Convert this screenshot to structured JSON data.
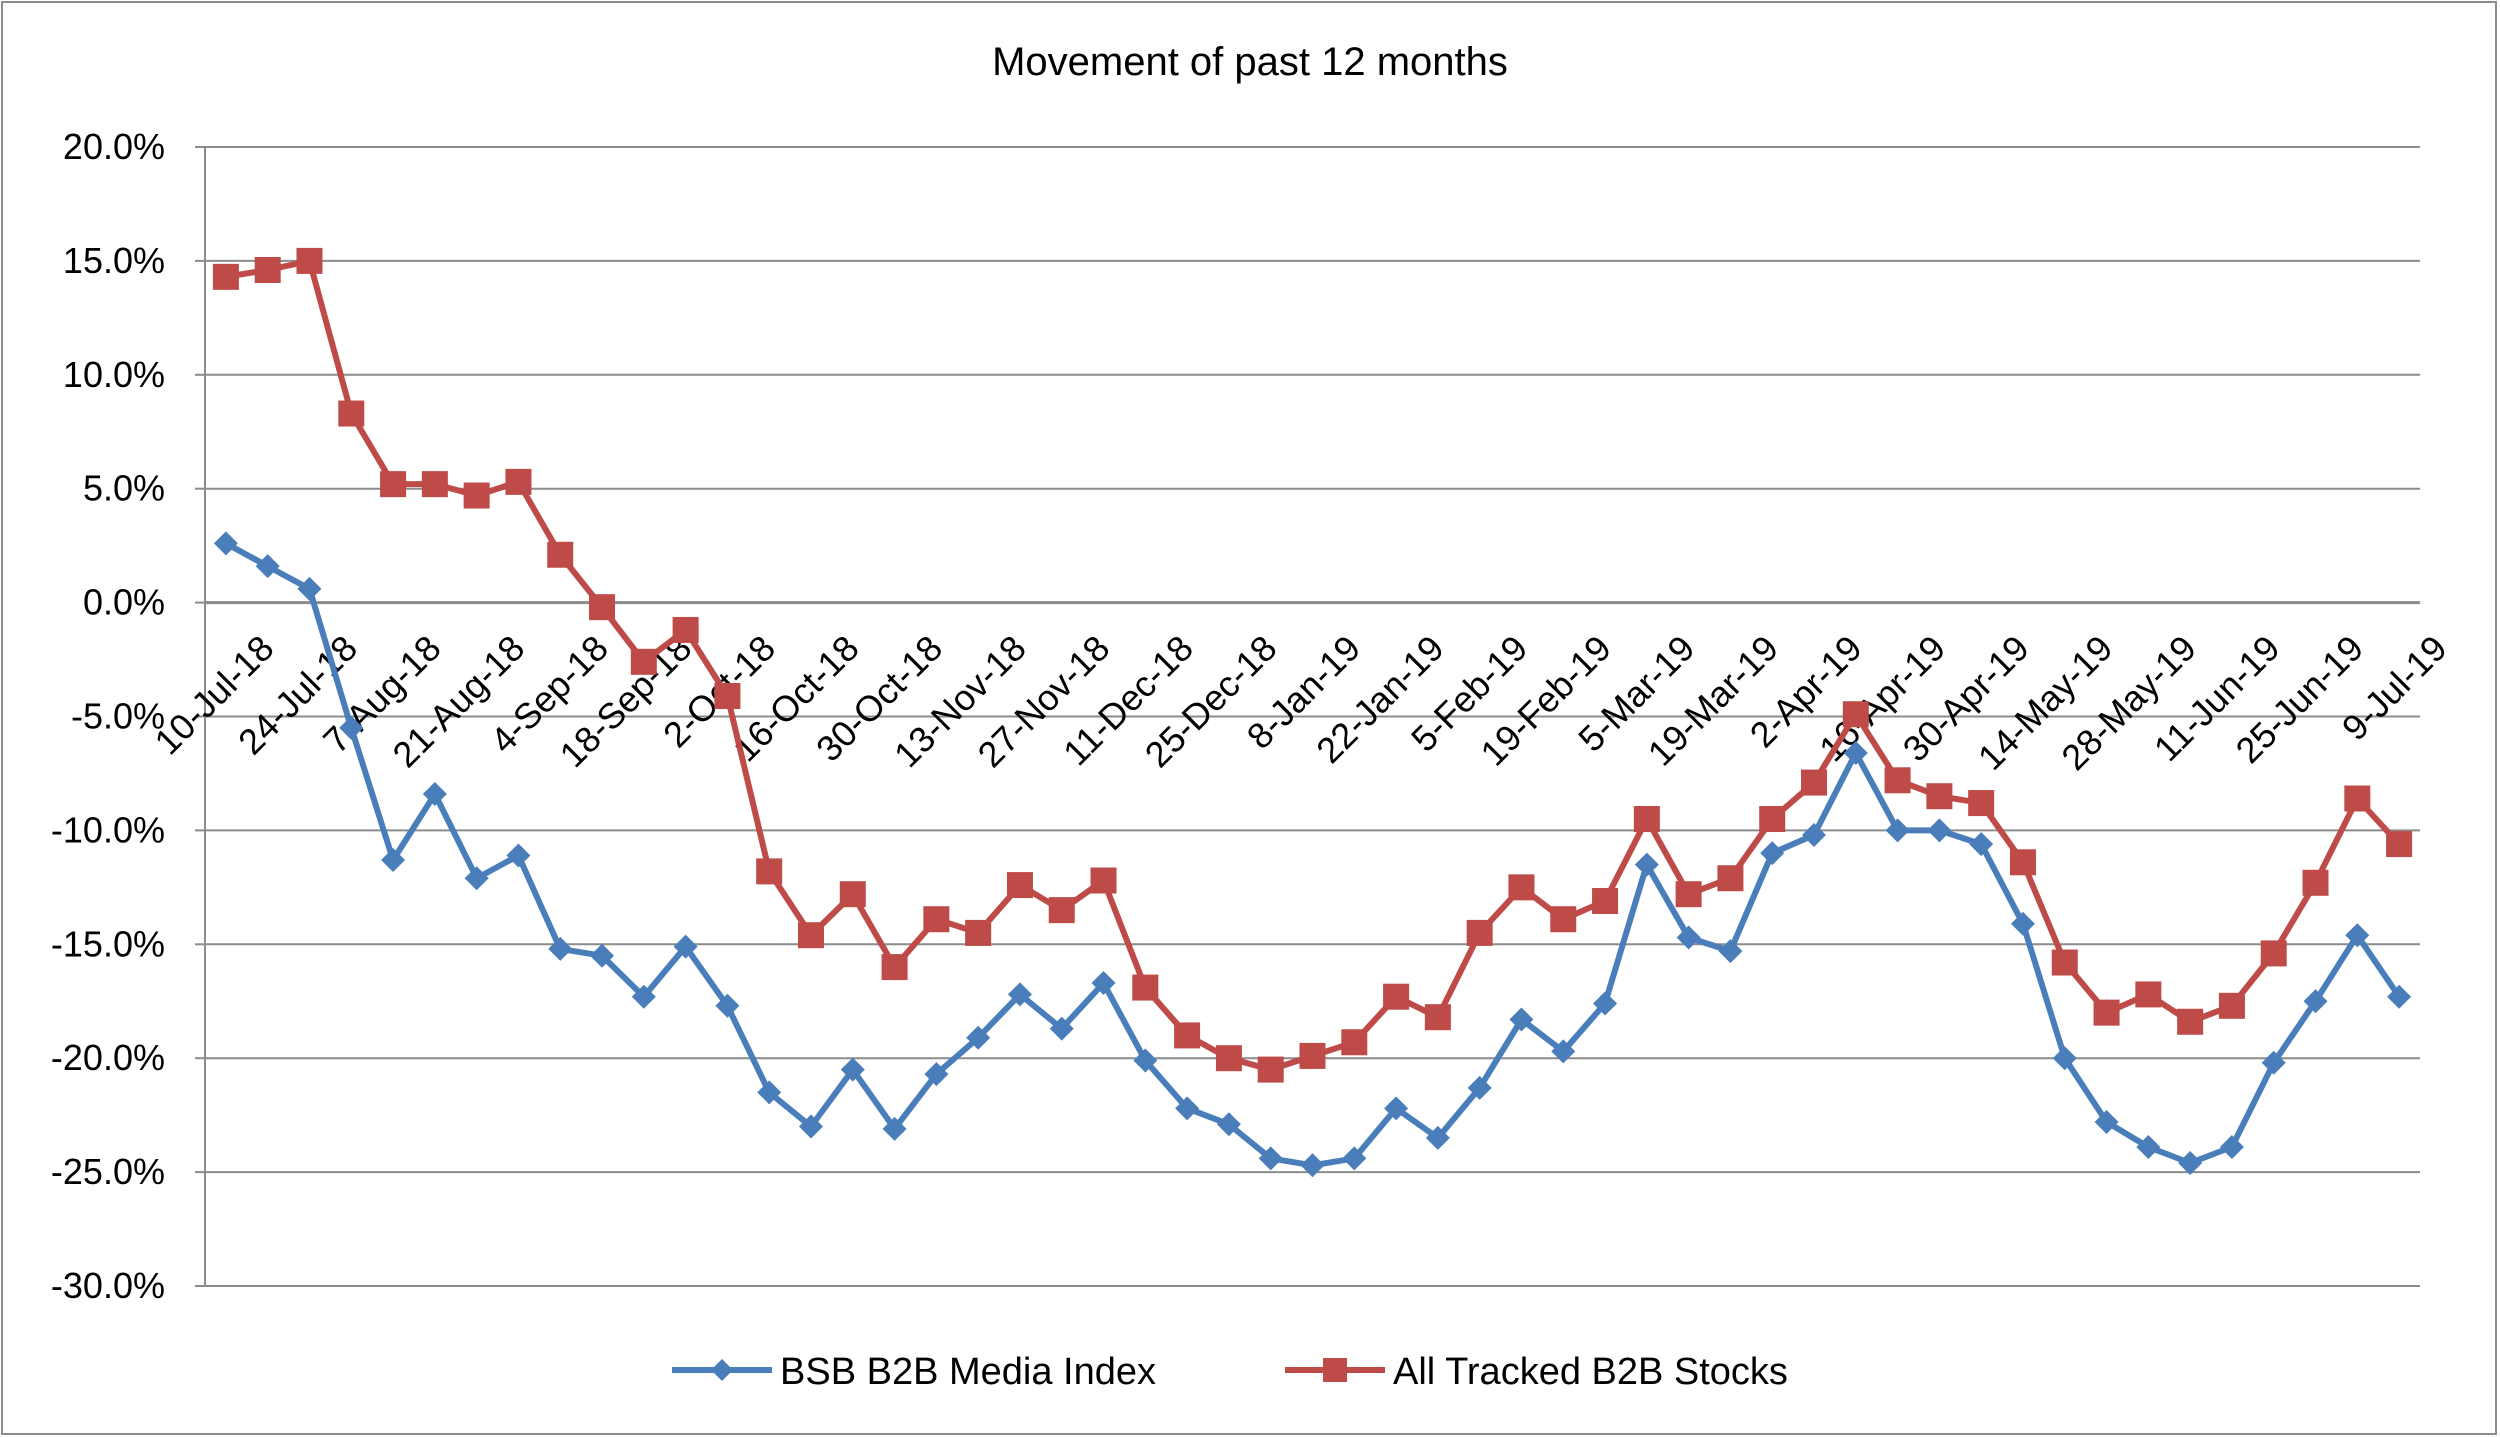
{
  "chart_data": {
    "type": "line",
    "title": "Movement of past 12 months",
    "xlabel": "",
    "ylabel": "",
    "ylim": [
      -30,
      20
    ],
    "yticks": [
      20,
      15,
      10,
      5,
      0,
      -5,
      -10,
      -15,
      -20,
      -25,
      -30
    ],
    "ytick_labels": [
      "20.0%",
      "15.0%",
      "10.0%",
      "5.0%",
      "0.0%",
      "-5.0%",
      "-10.0%",
      "-15.0%",
      "-20.0%",
      "-25.0%",
      "-30.0%"
    ],
    "grid": true,
    "legend_position": "bottom",
    "x_tick_labels": [
      "10-Jul-18",
      "24-Jul-18",
      "7-Aug-18",
      "21-Aug-18",
      "4-Sep-18",
      "18-Sep-18",
      "2-Oct-18",
      "16-Oct-18",
      "30-Oct-18",
      "13-Nov-18",
      "27-Nov-18",
      "11-Dec-18",
      "25-Dec-18",
      "8-Jan-19",
      "22-Jan-19",
      "5-Feb-19",
      "19-Feb-19",
      "5-Mar-19",
      "19-Mar-19",
      "2-Apr-19",
      "16-Apr-19",
      "30-Apr-19",
      "14-May-19",
      "28-May-19",
      "11-Jun-19",
      "25-Jun-19",
      "9-Jul-19"
    ],
    "series": [
      {
        "name": "BSB B2B Media Index",
        "color": "#4a7ebb",
        "marker": "diamond",
        "values": [
          2.6,
          1.6,
          0.6,
          -5.5,
          -11.3,
          -8.4,
          -12.1,
          -11.1,
          -15.2,
          -15.5,
          -17.3,
          -15.1,
          -17.7,
          -21.5,
          -23.0,
          -20.5,
          -23.1,
          -20.7,
          -19.1,
          -17.2,
          -18.7,
          -16.7,
          -20.1,
          -22.2,
          -22.9,
          -24.4,
          -24.7,
          -24.4,
          -22.2,
          -23.5,
          -21.3,
          -18.3,
          -19.7,
          -17.6,
          -11.5,
          -14.7,
          -15.3,
          -11.0,
          -10.2,
          -6.6,
          -10.0,
          -10.0,
          -10.6,
          -14.1,
          -20.0,
          -22.8,
          -23.9,
          -24.6,
          -23.9,
          -20.2,
          -17.5,
          -14.6,
          -17.3
        ]
      },
      {
        "name": "All Tracked B2B Stocks",
        "color": "#be4b48",
        "marker": "square",
        "values": [
          14.3,
          14.6,
          15.0,
          8.3,
          5.2,
          5.2,
          4.7,
          5.3,
          2.1,
          -0.2,
          -2.6,
          -1.2,
          -4.1,
          -11.8,
          -14.6,
          -12.8,
          -16.0,
          -13.9,
          -14.5,
          -12.4,
          -13.5,
          -12.2,
          -16.9,
          -19.0,
          -20.0,
          -20.5,
          -19.9,
          -19.3,
          -17.3,
          -18.2,
          -14.5,
          -12.5,
          -13.9,
          -13.1,
          -9.5,
          -12.8,
          -12.1,
          -9.5,
          -7.9,
          -4.9,
          -7.8,
          -8.5,
          -8.8,
          -11.4,
          -15.8,
          -18.0,
          -17.2,
          -18.4,
          -17.7,
          -15.4,
          -12.3,
          -8.6,
          -10.6
        ]
      }
    ]
  }
}
